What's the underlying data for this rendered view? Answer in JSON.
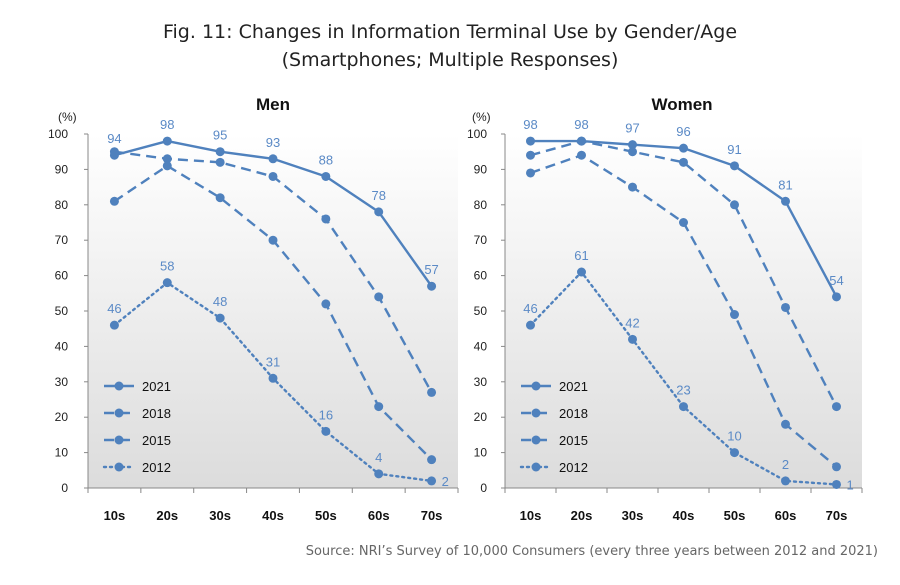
{
  "title": "Fig. 11: Changes in Information Terminal Use by Gender/Age",
  "subtitle": "(Smartphones; Multiple Responses)",
  "source": "Source: NRI’s Survey of 10,000 Consumers (every three years between 2012 and 2021)",
  "colors": {
    "series": "#4f81bd",
    "label": "#5b8ac6",
    "plotTop": "#ffffff",
    "plotBottom": "#dcdcdc"
  },
  "chart_data": [
    {
      "type": "line",
      "title": "Men",
      "ylabel": "(%)",
      "ylim": [
        0,
        100
      ],
      "yticks": [
        0,
        10,
        20,
        30,
        40,
        50,
        60,
        70,
        80,
        90,
        100
      ],
      "categories": [
        "10s",
        "20s",
        "30s",
        "40s",
        "50s",
        "60s",
        "70s"
      ],
      "legend": "bottom-left",
      "series": [
        {
          "name": "2021",
          "style": "solid",
          "values": [
            94,
            98,
            95,
            93,
            88,
            78,
            57
          ],
          "labels": [
            "94",
            "98",
            "95",
            "93",
            "88",
            "78",
            "57"
          ]
        },
        {
          "name": "2018",
          "style": "dash",
          "values": [
            95,
            93,
            92,
            88,
            76,
            54,
            27
          ],
          "labels": []
        },
        {
          "name": "2015",
          "style": "dash",
          "values": [
            81,
            91,
            82,
            70,
            52,
            23,
            8
          ],
          "labels": []
        },
        {
          "name": "2012",
          "style": "dot",
          "values": [
            46,
            58,
            48,
            31,
            16,
            4,
            2
          ],
          "labels": [
            "46",
            "58",
            "48",
            "31",
            "16",
            "4",
            "2"
          ]
        }
      ]
    },
    {
      "type": "line",
      "title": "Women",
      "ylabel": "(%)",
      "ylim": [
        0,
        100
      ],
      "yticks": [
        0,
        10,
        20,
        30,
        40,
        50,
        60,
        70,
        80,
        90,
        100
      ],
      "categories": [
        "10s",
        "20s",
        "30s",
        "40s",
        "50s",
        "60s",
        "70s"
      ],
      "legend": "bottom-left",
      "series": [
        {
          "name": "2021",
          "style": "solid",
          "values": [
            98,
            98,
            97,
            96,
            91,
            81,
            54
          ],
          "labels": [
            "98",
            "98",
            "97",
            "96",
            "91",
            "81",
            "54"
          ]
        },
        {
          "name": "2018",
          "style": "dash",
          "values": [
            94,
            98,
            95,
            92,
            80,
            51,
            23
          ],
          "labels": []
        },
        {
          "name": "2015",
          "style": "dash",
          "values": [
            89,
            94,
            85,
            75,
            49,
            18,
            6
          ],
          "labels": []
        },
        {
          "name": "2012",
          "style": "dot",
          "values": [
            46,
            61,
            42,
            23,
            10,
            2,
            1
          ],
          "labels": [
            "46",
            "61",
            "42",
            "23",
            "10",
            "2",
            "1"
          ]
        }
      ]
    }
  ]
}
